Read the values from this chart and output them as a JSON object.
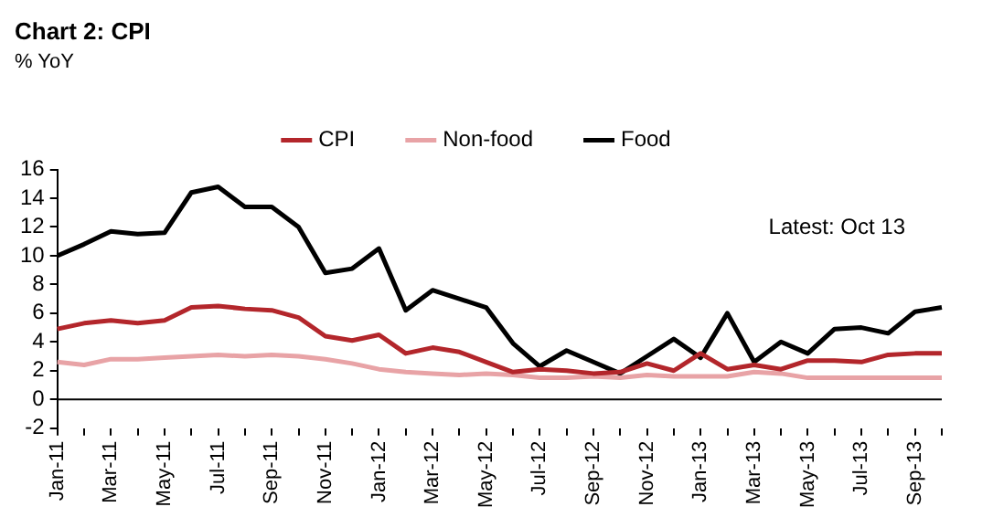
{
  "chart_data": {
    "type": "line",
    "title": "Chart 2: CPI",
    "subtitle": "% YoY",
    "categories": [
      "Jan-11",
      null,
      "Mar-11",
      null,
      "May-11",
      null,
      "Jul-11",
      null,
      "Sep-11",
      null,
      "Nov-11",
      null,
      "Jan-12",
      null,
      "Mar-12",
      null,
      "May-12",
      null,
      "Jul-12",
      null,
      "Sep-12",
      null,
      "Nov-12",
      null,
      "Jan-13",
      null,
      "Mar-13",
      null,
      "May-13",
      null,
      "Jul-13",
      null,
      "Sep-13",
      null
    ],
    "series": [
      {
        "name": "CPI",
        "color": "#b3262b",
        "values": [
          4.9,
          5.3,
          5.5,
          5.3,
          5.5,
          6.4,
          6.5,
          6.3,
          6.2,
          5.7,
          4.4,
          4.1,
          4.5,
          3.2,
          3.6,
          3.3,
          2.6,
          1.9,
          2.1,
          2.0,
          1.8,
          1.9,
          2.5,
          2.0,
          3.2,
          2.1,
          2.4,
          2.1,
          2.7,
          2.7,
          2.6,
          3.1,
          3.2,
          3.2
        ]
      },
      {
        "name": "Non-food",
        "color": "#e8a3a6",
        "values": [
          2.6,
          2.4,
          2.8,
          2.8,
          2.9,
          3.0,
          3.1,
          3.0,
          3.1,
          3.0,
          2.8,
          2.5,
          2.1,
          1.9,
          1.8,
          1.7,
          1.8,
          1.7,
          1.5,
          1.5,
          1.6,
          1.5,
          1.7,
          1.6,
          1.6,
          1.6,
          1.9,
          1.8,
          1.5,
          1.5,
          1.5,
          1.5,
          1.5,
          1.5
        ]
      },
      {
        "name": "Food",
        "color": "#000000",
        "values": [
          10.0,
          10.8,
          11.7,
          11.5,
          11.6,
          14.4,
          14.8,
          13.4,
          13.4,
          12.0,
          8.8,
          9.1,
          10.5,
          6.2,
          7.6,
          7.0,
          6.4,
          3.9,
          2.3,
          3.4,
          2.6,
          1.8,
          3.0,
          4.2,
          2.9,
          6.0,
          2.6,
          4.0,
          3.2,
          4.9,
          5.0,
          4.6,
          6.1,
          6.4
        ]
      }
    ],
    "ylim": [
      -2,
      16
    ],
    "yticks": [
      -2,
      0,
      2,
      4,
      6,
      8,
      10,
      12,
      14,
      16
    ],
    "grid": false,
    "legend": "top",
    "marker": "none",
    "line_style": "solid",
    "annotations": [
      "Latest: Oct 13"
    ]
  }
}
